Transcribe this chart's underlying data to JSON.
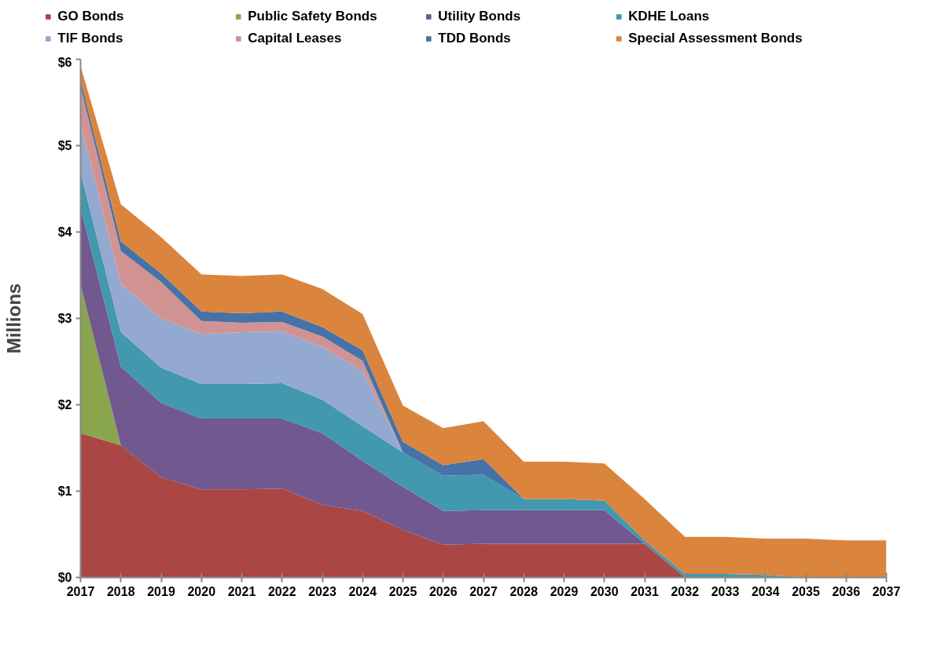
{
  "chart_data": {
    "type": "area",
    "stacked": true,
    "ylabel": "Millions",
    "legend": "top",
    "grid": false,
    "x": [
      2017,
      2018,
      2019,
      2020,
      2021,
      2022,
      2023,
      2024,
      2025,
      2026,
      2027,
      2028,
      2029,
      2030,
      2031,
      2032,
      2033,
      2034,
      2035,
      2036,
      2037
    ],
    "xlim": [
      2017,
      2037
    ],
    "xticks": [
      2017,
      2018,
      2019,
      2020,
      2021,
      2022,
      2023,
      2024,
      2025,
      2026,
      2027,
      2028,
      2029,
      2030,
      2031,
      2032,
      2033,
      2034,
      2035,
      2036,
      2037
    ],
    "ylim": [
      0,
      6
    ],
    "yticks": [
      {
        "value": 0,
        "label": "$0"
      },
      {
        "value": 1,
        "label": "$1"
      },
      {
        "value": 2,
        "label": "$2"
      },
      {
        "value": 3,
        "label": "$3"
      },
      {
        "value": 4,
        "label": "$4"
      },
      {
        "value": 5,
        "label": "$5"
      },
      {
        "value": 6,
        "label": "$6"
      }
    ],
    "series": [
      {
        "name": "GO Bonds",
        "color": "#aa4643",
        "values": [
          1.67,
          1.53,
          1.16,
          1.02,
          1.02,
          1.03,
          0.84,
          0.77,
          0.55,
          0.38,
          0.39,
          0.39,
          0.39,
          0.39,
          0.39,
          0,
          0,
          0,
          0,
          0,
          0
        ]
      },
      {
        "name": "Public Safety Bonds",
        "color": "#89a54e",
        "values": [
          1.72,
          0,
          0,
          0,
          0,
          0,
          0,
          0,
          0,
          0,
          0,
          0,
          0,
          0,
          0,
          0,
          0,
          0,
          0,
          0,
          0
        ]
      },
      {
        "name": "Utility Bonds",
        "color": "#71588f",
        "values": [
          0.89,
          0.91,
          0.86,
          0.82,
          0.82,
          0.81,
          0.83,
          0.58,
          0.5,
          0.39,
          0.39,
          0.39,
          0.39,
          0.39,
          0,
          0,
          0,
          0,
          0,
          0,
          0
        ]
      },
      {
        "name": "KDHE Loans",
        "color": "#4198af",
        "values": [
          0.41,
          0.4,
          0.41,
          0.4,
          0.4,
          0.41,
          0.39,
          0.4,
          0.4,
          0.41,
          0.41,
          0.13,
          0.13,
          0.11,
          0.04,
          0.04,
          0.04,
          0.03,
          0,
          0,
          0
        ]
      },
      {
        "name": "TIF Bonds",
        "color": "#93a9cf",
        "values": [
          0.56,
          0.56,
          0.57,
          0.58,
          0.6,
          0.6,
          0.61,
          0.64,
          0,
          0,
          0,
          0,
          0,
          0,
          0,
          0,
          0,
          0,
          0,
          0,
          0
        ]
      },
      {
        "name": "Capital Leases",
        "color": "#d19392",
        "values": [
          0.43,
          0.38,
          0.42,
          0.15,
          0.11,
          0.11,
          0.12,
          0.12,
          0,
          0,
          0,
          0,
          0,
          0,
          0,
          0,
          0,
          0,
          0,
          0,
          0
        ]
      },
      {
        "name": "TDD Bonds",
        "color": "#4572a7",
        "values": [
          0.08,
          0.11,
          0.1,
          0.11,
          0.11,
          0.12,
          0.11,
          0.12,
          0.12,
          0.12,
          0.18,
          0,
          0,
          0,
          0,
          0,
          0,
          0,
          0,
          0,
          0
        ]
      },
      {
        "name": "Special Assessment Bonds",
        "color": "#db843d",
        "values": [
          0.16,
          0.43,
          0.42,
          0.43,
          0.43,
          0.43,
          0.44,
          0.42,
          0.42,
          0.43,
          0.44,
          0.43,
          0.43,
          0.43,
          0.48,
          0.43,
          0.43,
          0.42,
          0.45,
          0.43,
          0.43
        ]
      }
    ]
  }
}
